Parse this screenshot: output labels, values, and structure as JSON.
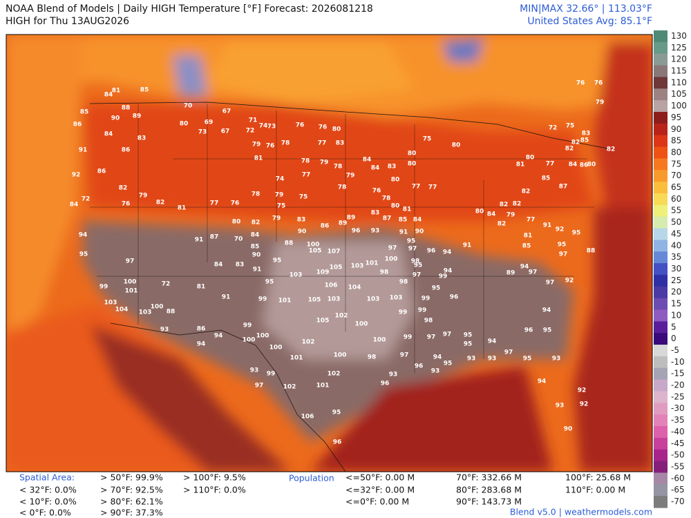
{
  "header": {
    "title": "NOAA Blend of Models | Daily HIGH Temperature [°F] Forecast: 2026081218",
    "subtitle": "HIGH for Thu 13AUG2026",
    "minmax": "MIN|MAX 32.66°  | 113.03°F",
    "average": "United States Avg: 85.1°F"
  },
  "colorbar": {
    "ticks": [
      130,
      125,
      120,
      115,
      110,
      105,
      100,
      95,
      90,
      85,
      80,
      75,
      70,
      65,
      60,
      55,
      50,
      45,
      40,
      35,
      30,
      25,
      20,
      15,
      10,
      5,
      0,
      -5,
      -10,
      -15,
      -20,
      -25,
      -30,
      -35,
      -40,
      -45,
      -50,
      -55,
      -60,
      -65,
      -70
    ],
    "colors": [
      "#4f8a76",
      "#679a88",
      "#8a9a94",
      "#8a7878",
      "#6e3838",
      "#9c8282",
      "#b7a3a3",
      "#8c1d1a",
      "#b8231a",
      "#dc3616",
      "#ee5314",
      "#f7791f",
      "#f99b2c",
      "#fabd3c",
      "#f8da56",
      "#eef07a",
      "#d6ecae",
      "#b7d7e8",
      "#8fb4e4",
      "#6688d8",
      "#4450c4",
      "#2f30a6",
      "#4a3aa6",
      "#6c4cb2",
      "#8e5cc0",
      "#5a1e9c",
      "#3a0a7a",
      "#d8d8d8",
      "#bdbdbd",
      "#a4a4b4",
      "#c8a8c8",
      "#dcb4cc",
      "#e09cc0",
      "#e282b8",
      "#dc60aa",
      "#c8409c",
      "#a8248a",
      "#84207a",
      "#a688a6",
      "#9494a2",
      "#7c7c7c"
    ]
  },
  "map": {
    "station_temps": [
      85,
      81,
      84,
      88,
      85,
      90,
      89,
      86,
      84,
      83,
      91,
      86,
      86,
      92,
      82,
      79,
      76,
      82,
      81,
      72,
      84,
      94,
      97,
      95,
      99,
      100,
      101,
      103,
      104,
      103,
      100,
      88,
      93,
      72,
      81,
      91,
      86,
      94,
      94,
      99,
      100,
      100,
      100,
      93,
      99,
      97,
      102,
      106,
      95,
      96,
      101,
      102,
      96,
      93,
      100,
      98,
      100,
      102,
      101,
      100,
      102,
      105,
      105,
      103,
      106,
      104,
      103,
      103,
      99,
      98,
      95,
      97,
      100,
      101,
      103,
      105,
      109,
      103,
      100,
      105,
      107,
      88,
      91,
      83,
      84,
      95,
      95,
      101,
      99,
      90,
      85,
      91,
      87,
      70,
      80,
      82,
      84,
      67,
      71,
      73,
      76,
      76,
      80,
      70,
      80,
      69,
      73,
      67,
      72,
      74,
      79,
      81,
      76,
      78,
      77,
      83,
      78,
      79,
      78,
      84,
      84,
      83,
      80,
      77,
      77,
      74,
      77,
      79,
      78,
      76,
      78,
      80,
      81,
      75,
      79,
      78,
      76,
      77,
      75,
      79,
      83,
      86,
      89,
      89,
      83,
      87,
      85,
      84,
      90,
      96,
      93,
      91,
      90,
      97,
      98,
      96,
      94,
      99,
      97,
      98,
      98,
      80,
      80,
      75,
      80,
      81,
      80,
      77,
      85,
      87,
      82,
      82,
      84,
      86,
      80,
      82,
      85,
      83,
      76,
      76,
      79,
      72,
      75,
      82,
      82,
      82,
      79,
      80,
      84,
      82,
      77,
      81,
      85,
      91,
      92,
      95,
      88,
      97,
      95,
      89,
      94,
      97,
      97,
      92,
      94,
      95,
      96,
      93,
      95,
      97,
      94,
      93,
      94,
      92,
      93,
      92,
      90,
      95,
      91,
      94,
      95,
      96,
      99,
      99,
      97,
      95,
      95,
      94,
      95,
      93,
      96,
      93,
      99,
      97,
      97
    ]
  },
  "footer": {
    "spatial_label": "Spatial Area:",
    "spatial_stats": [
      "< 32°F: 0.0%",
      "< 10°F: 0.0%",
      "< 0°F: 0.0%",
      "> 50°F: 99.9%",
      "> 70°F: 92.5%",
      "> 80°F: 62.1%",
      "> 90°F: 37.3%",
      "> 100°F: 9.5%",
      "> 110°F: 0.0%"
    ],
    "population_label": "Population",
    "population_stats": [
      "<=50°F: 0.00 M",
      "<=32°F: 0.00 M",
      "<=0°F: 0.00 M",
      "70°F: 332.66 M",
      "80°F: 283.68 M",
      "90°F: 143.73 M",
      "100°F: 25.68 M",
      "110°F: 0.00 M"
    ],
    "credit": "Blend v5.0 | weathermodels.com"
  }
}
